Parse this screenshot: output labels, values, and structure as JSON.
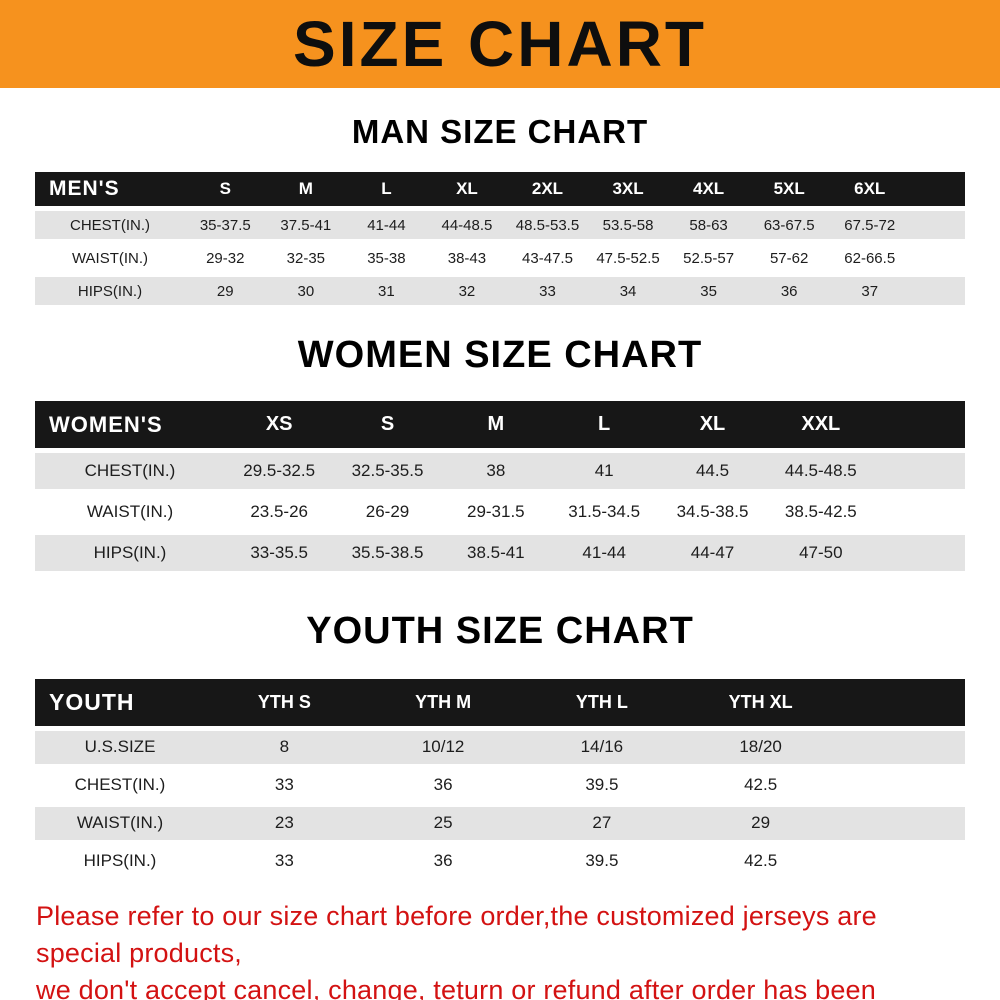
{
  "banner": {
    "title": "SIZE CHART"
  },
  "colors": {
    "banner_bg": "#F6921E",
    "table_header_bg": "#171717",
    "row_shade": "#E3E3E3",
    "footer_text": "#D31212"
  },
  "chart_data": [
    {
      "type": "table",
      "title": "MAN SIZE CHART",
      "corner_label": "MEN'S",
      "columns": [
        "S",
        "M",
        "L",
        "XL",
        "2XL",
        "3XL",
        "4XL",
        "5XL",
        "6XL"
      ],
      "row_labels": [
        "CHEST(IN.)",
        "WAIST(IN.)",
        "HIPS(IN.)"
      ],
      "rows": [
        [
          "35-37.5",
          "37.5-41",
          "41-44",
          "44-48.5",
          "48.5-53.5",
          "53.5-58",
          "58-63",
          "63-67.5",
          "67.5-72"
        ],
        [
          "29-32",
          "32-35",
          "35-38",
          "38-43",
          "43-47.5",
          "47.5-52.5",
          "52.5-57",
          "57-62",
          "62-66.5"
        ],
        [
          "29",
          "30",
          "31",
          "32",
          "33",
          "34",
          "35",
          "36",
          "37"
        ]
      ]
    },
    {
      "type": "table",
      "title": "WOMEN SIZE CHART",
      "corner_label": "WOMEN'S",
      "columns": [
        "XS",
        "S",
        "M",
        "L",
        "XL",
        "XXL"
      ],
      "row_labels": [
        "CHEST(IN.)",
        "WAIST(IN.)",
        "HIPS(IN.)"
      ],
      "rows": [
        [
          "29.5-32.5",
          "32.5-35.5",
          "38",
          "41",
          "44.5",
          "44.5-48.5"
        ],
        [
          "23.5-26",
          "26-29",
          "29-31.5",
          "31.5-34.5",
          "34.5-38.5",
          "38.5-42.5"
        ],
        [
          "33-35.5",
          "35.5-38.5",
          "38.5-41",
          "41-44",
          "44-47",
          "47-50"
        ]
      ]
    },
    {
      "type": "table",
      "title": "YOUTH SIZE CHART",
      "corner_label": "YOUTH",
      "columns": [
        "YTH S",
        "YTH M",
        "YTH L",
        "YTH XL"
      ],
      "row_labels": [
        "U.S.SIZE",
        "CHEST(IN.)",
        "WAIST(IN.)",
        "HIPS(IN.)"
      ],
      "rows": [
        [
          "8",
          "10/12",
          "14/16",
          "18/20"
        ],
        [
          "33",
          "36",
          "39.5",
          "42.5"
        ],
        [
          "23",
          "25",
          "27",
          "29"
        ],
        [
          "33",
          "36",
          "39.5",
          "42.5"
        ]
      ]
    }
  ],
  "footer": {
    "line1": "Please refer to our size chart before order,the customized jerseys are special products,",
    "line2": "we don't accept cancel, change, teturn or refund after order has been placed!"
  }
}
